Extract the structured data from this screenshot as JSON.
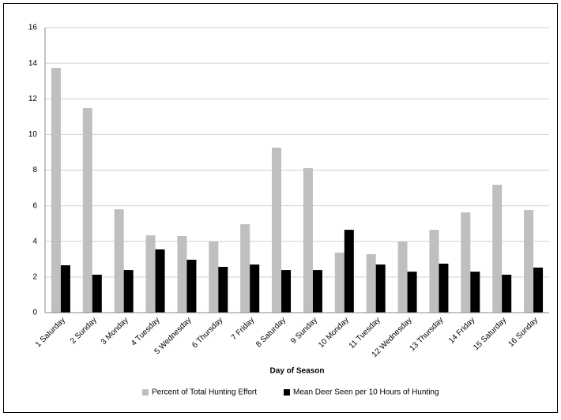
{
  "chart_data": {
    "type": "bar",
    "x_label": "Day of Season",
    "categories": [
      "1 Saturday",
      "2 Sunday",
      "3 Monday",
      "4 Tuesday",
      "5 Wednesday",
      "6 Thursday",
      "7 Friday",
      "8 Saturday",
      "9 Sunday",
      "10 Monday",
      "11 Tuesday",
      "12 Wednesday",
      "13 Thursday",
      "14 Friday",
      "15 Saturday",
      "16 Sunday"
    ],
    "series": [
      {
        "name": "Percent of Total Hunting Effort",
        "color": "#bfbfbf",
        "values": [
          13.74,
          11.48,
          5.8,
          4.34,
          4.3,
          3.99,
          4.96,
          9.26,
          8.11,
          3.37,
          3.28,
          3.99,
          4.65,
          5.63,
          7.18,
          5.76
        ]
      },
      {
        "name": "Mean Deer Seen per 10 Hours of Hunting",
        "color": "#000000",
        "values": [
          2.66,
          2.13,
          2.39,
          3.55,
          2.97,
          2.57,
          2.7,
          2.39,
          2.39,
          4.65,
          2.7,
          2.3,
          2.75,
          2.3,
          2.13,
          2.53
        ]
      }
    ],
    "ylim": [
      0,
      16
    ],
    "yticks": [
      0,
      2,
      4,
      6,
      8,
      10,
      12,
      14,
      16
    ],
    "grid": true,
    "legend": "bottom"
  }
}
